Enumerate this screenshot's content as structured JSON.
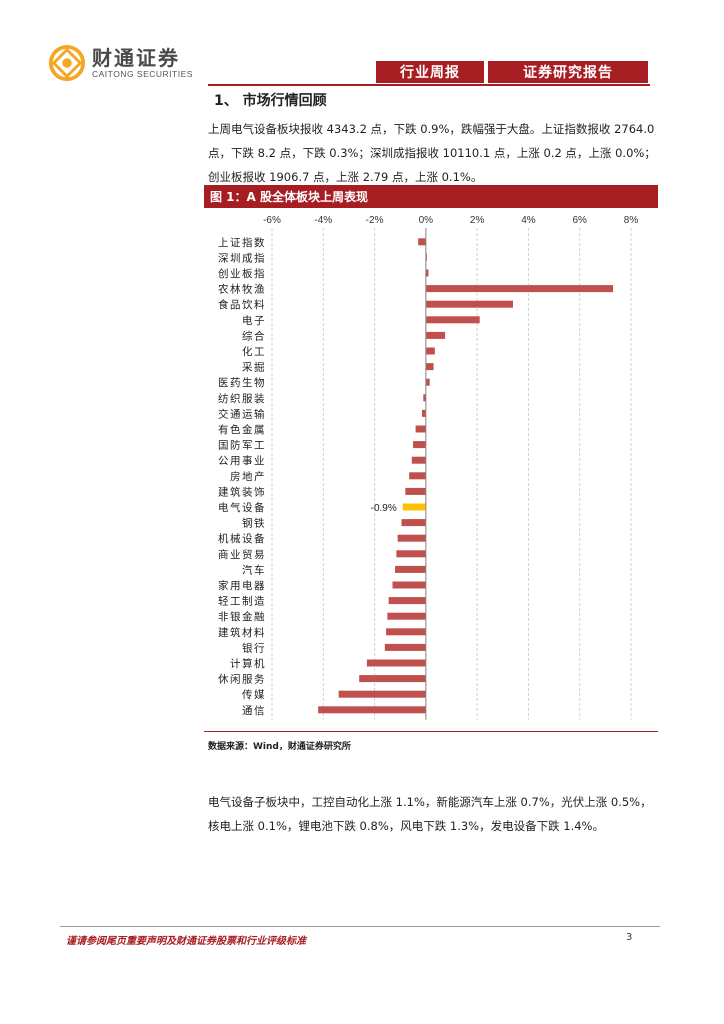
{
  "header": {
    "logo_cn": "财通证券",
    "logo_en": "CAITONG SECURITIES",
    "tab_left": "行业周报",
    "tab_right": "证券研究报告",
    "brand_color": "#a71e22",
    "logo_color": "#f5a623"
  },
  "section": {
    "title": "1、 市场行情回顾"
  },
  "paragraph1": "上周电气设备板块报收 4343.2 点，下跌 0.9%，跌幅强于大盘。上证指数报收 2764.0 点，下跌 8.2 点，下跌 0.3%；深圳成指报收 10110.1 点，上涨 0.2 点，上涨 0.0%；创业板报收 1906.7 点，上涨 2.79 点，上涨 0.1%。",
  "figure": {
    "title": "图 1：A 股全体板块上周表现"
  },
  "chart_data": {
    "type": "bar",
    "orientation": "horizontal",
    "categories": [
      "上证指数",
      "深圳成指",
      "创业板指",
      "农林牧渔",
      "食品饮料",
      "电子",
      "综合",
      "化工",
      "采掘",
      "医药生物",
      "纺织服装",
      "交通运输",
      "有色金属",
      "国防军工",
      "公用事业",
      "房地产",
      "建筑装饰",
      "电气设备",
      "钢铁",
      "机械设备",
      "商业贸易",
      "汽车",
      "家用电器",
      "轻工制造",
      "非银金融",
      "建筑材料",
      "银行",
      "计算机",
      "休闲服务",
      "传媒",
      "通信"
    ],
    "values": [
      -0.3,
      0.0,
      0.1,
      7.3,
      3.4,
      2.1,
      0.75,
      0.35,
      0.3,
      0.15,
      -0.1,
      -0.15,
      -0.4,
      -0.5,
      -0.55,
      -0.65,
      -0.8,
      -0.9,
      -0.95,
      -1.1,
      -1.15,
      -1.2,
      -1.3,
      -1.45,
      -1.5,
      -1.55,
      -1.6,
      -2.3,
      -2.6,
      -3.4,
      -4.2
    ],
    "highlight": {
      "index": 17,
      "label": "-0.9%",
      "color": "#ffc000"
    },
    "bar_color": "#c0504d",
    "xlim": [
      -6,
      8
    ],
    "xticks": [
      "-6%",
      "-4%",
      "-2%",
      "0%",
      "2%",
      "4%",
      "6%",
      "8%"
    ],
    "grid": true,
    "title": "",
    "xlabel": "",
    "ylabel": ""
  },
  "source": "数据来源：Wind，财通证券研究所",
  "paragraph2": "电气设备子板块中，工控自动化上涨 1.1%，新能源汽车上涨 0.7%，光伏上涨 0.5%，核电上涨 0.1%，锂电池下跌 0.8%，风电下跌 1.3%，发电设备下跌 1.4%。",
  "footer": {
    "disclaimer": "谨请参阅尾页重要声明及财通证券股票和行业评级标准",
    "page_number": "3"
  }
}
